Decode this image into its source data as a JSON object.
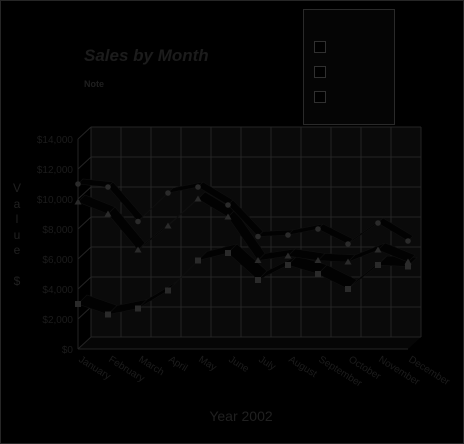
{
  "chart_data": {
    "type": "line",
    "title": "Sales by Month",
    "note_label": "Note",
    "notes": [],
    "xlabel": "Year 2002",
    "ylabel": "Value $",
    "categories": [
      "January",
      "February",
      "March",
      "April",
      "May",
      "June",
      "July",
      "August",
      "September",
      "October",
      "November",
      "December"
    ],
    "ylim": [
      0,
      14000
    ],
    "yticks": [
      0,
      2000,
      4000,
      6000,
      8000,
      10000,
      12000,
      14000
    ],
    "ytick_labels": [
      "$0",
      "$2,000",
      "$4,000",
      "$6,000",
      "$8,000",
      "$10,000",
      "$12,000",
      "$14,000"
    ],
    "grid": true,
    "legend_position": "top-right",
    "series": [
      {
        "values": [
          11000,
          10800,
          8500,
          10400,
          10800,
          9600,
          7500,
          7600,
          8000,
          7000,
          8400,
          7200
        ]
      },
      {
        "values": [
          9800,
          9000,
          6600,
          8200,
          10000,
          8800,
          5900,
          6200,
          5900,
          5800,
          6600,
          5800
        ]
      },
      {
        "values": [
          3000,
          2300,
          2700,
          3900,
          5900,
          6400,
          4600,
          5600,
          5000,
          4000,
          5600,
          5500
        ]
      }
    ]
  },
  "legend": {
    "items": [
      {
        "label": "",
        "color": "#000000"
      },
      {
        "label": "",
        "color": "#000000"
      },
      {
        "label": "",
        "color": "#000000"
      }
    ]
  },
  "colors": {
    "grid": "#242424",
    "wall": "#0a0a0a",
    "ribbon": "#020202",
    "marker": "#2a2a2a",
    "text": "#1c1c1c"
  }
}
